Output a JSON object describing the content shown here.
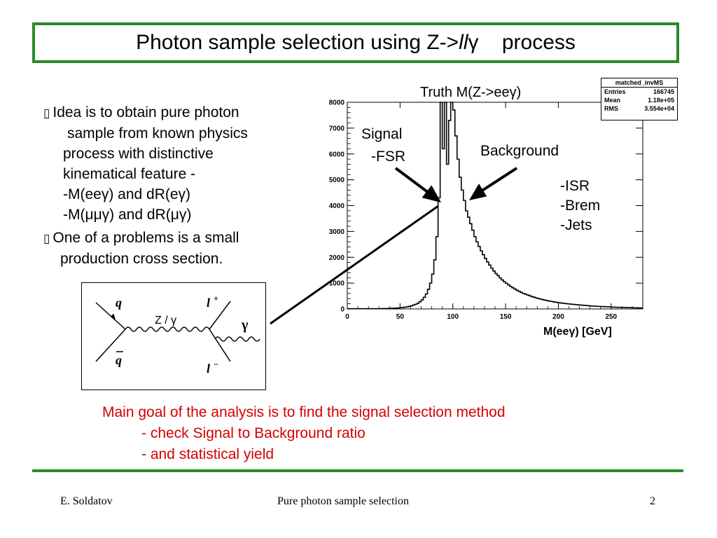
{
  "slide": {
    "title_main": "Photon sample  selection using Z->",
    "title_ll": "ll",
    "title_gamma": "γ",
    "title_tail": "process",
    "bullets": {
      "b1_l1": "Idea is to obtain  pure photon",
      "b1_l2": "sample from known physics",
      "b1_l3": "process  with distinctive",
      "b1_l4": "kinematical feature -",
      "b1_l5": "-M(eeγ) and dR(eγ)",
      "b1_l6": "-M(μμγ) and dR(μγ)",
      "b2_l1": "One of a problems is a small",
      "b2_l2": "production cross section."
    },
    "bullet_symbol": "▯",
    "feynman": {
      "q": "q",
      "qbar": "q",
      "zg": "Z / γ",
      "lplus": "l",
      "lplus_sup": "+",
      "lminus": "l",
      "lminus_sup": "−",
      "gamma": "γ"
    },
    "annotations": {
      "truth": "Truth M(Z->eeγ)",
      "signal_1": "Signal",
      "signal_2": "-FSR",
      "background": "Background",
      "isr": "-ISR",
      "brem": "-Brem",
      "jets": "-Jets"
    },
    "goal": {
      "l1": "Main goal of the analysis is to find the signal selection method",
      "l2": "- check Signal to Background ratio",
      "l3": "- and statistical yield"
    },
    "footer": {
      "author": "E. Soldatov",
      "center": "Pure photon sample selection",
      "page": "2"
    }
  },
  "colors": {
    "frame_green": "#2a8a2a",
    "goal_red": "#d40000"
  },
  "chart_data": {
    "type": "histogram",
    "stat_box": {
      "name": "matched_invMS",
      "rows": [
        {
          "label": "Entries",
          "value": "166745"
        },
        {
          "label": "Mean",
          "value": "1.18e+05"
        },
        {
          "label": "RMS",
          "value": "3.554e+04"
        }
      ]
    },
    "xlabel": "M(eeγ) [GeV]",
    "xlim": [
      0,
      280
    ],
    "ylim": [
      0,
      8000
    ],
    "xticks": [
      0,
      50,
      100,
      150,
      200,
      250
    ],
    "yticks": [
      0,
      1000,
      2000,
      3000,
      4000,
      5000,
      6000,
      7000,
      8000
    ],
    "x": [
      0,
      2,
      4,
      6,
      8,
      10,
      12,
      14,
      16,
      18,
      20,
      22,
      24,
      26,
      28,
      30,
      32,
      34,
      36,
      38,
      40,
      42,
      44,
      46,
      48,
      50,
      52,
      54,
      56,
      58,
      60,
      62,
      64,
      66,
      68,
      70,
      72,
      74,
      76,
      78,
      80,
      82,
      84,
      86,
      88,
      90,
      92,
      94,
      96,
      98,
      100,
      102,
      104,
      106,
      108,
      110,
      112,
      114,
      116,
      118,
      120,
      122,
      124,
      126,
      128,
      130,
      132,
      134,
      136,
      138,
      140,
      142,
      144,
      146,
      148,
      150,
      152,
      154,
      156,
      158,
      160,
      162,
      164,
      166,
      168,
      170,
      172,
      174,
      176,
      178,
      180,
      182,
      184,
      186,
      188,
      190,
      192,
      194,
      196,
      198,
      200,
      202,
      204,
      206,
      208,
      210,
      212,
      214,
      216,
      218,
      220,
      222,
      224,
      226,
      228,
      230,
      232,
      234,
      236,
      238,
      240,
      242,
      244,
      246,
      248,
      250,
      252,
      254,
      256,
      258,
      260,
      262,
      264,
      266,
      268,
      270,
      272,
      274,
      276,
      278
    ],
    "values": [
      10,
      10,
      10,
      10,
      10,
      10,
      10,
      10,
      10,
      10,
      10,
      10,
      10,
      10,
      10,
      10,
      12,
      14,
      16,
      18,
      22,
      26,
      30,
      35,
      40,
      50,
      60,
      70,
      80,
      100,
      120,
      150,
      180,
      220,
      280,
      350,
      450,
      580,
      760,
      1000,
      1350,
      1900,
      2800,
      4300,
      8050,
      6200,
      8100,
      5600,
      7300,
      8050,
      7700,
      6700,
      5800,
      5100,
      4600,
      4200,
      3800,
      3550,
      3300,
      3050,
      2800,
      2600,
      2420,
      2250,
      2100,
      1950,
      1820,
      1700,
      1580,
      1470,
      1370,
      1290,
      1200,
      1120,
      1050,
      990,
      930,
      870,
      820,
      770,
      720,
      680,
      640,
      600,
      570,
      540,
      510,
      480,
      455,
      430,
      405,
      385,
      365,
      345,
      328,
      310,
      295,
      280,
      265,
      252,
      240,
      228,
      218,
      208,
      198,
      190,
      182,
      174,
      166,
      158,
      150,
      143,
      136,
      130,
      124,
      118,
      112,
      107,
      102,
      98,
      94,
      90,
      86,
      82,
      78,
      74,
      70,
      67,
      64,
      61,
      58,
      55,
      52,
      50,
      48,
      46,
      44,
      42,
      40,
      38
    ]
  }
}
